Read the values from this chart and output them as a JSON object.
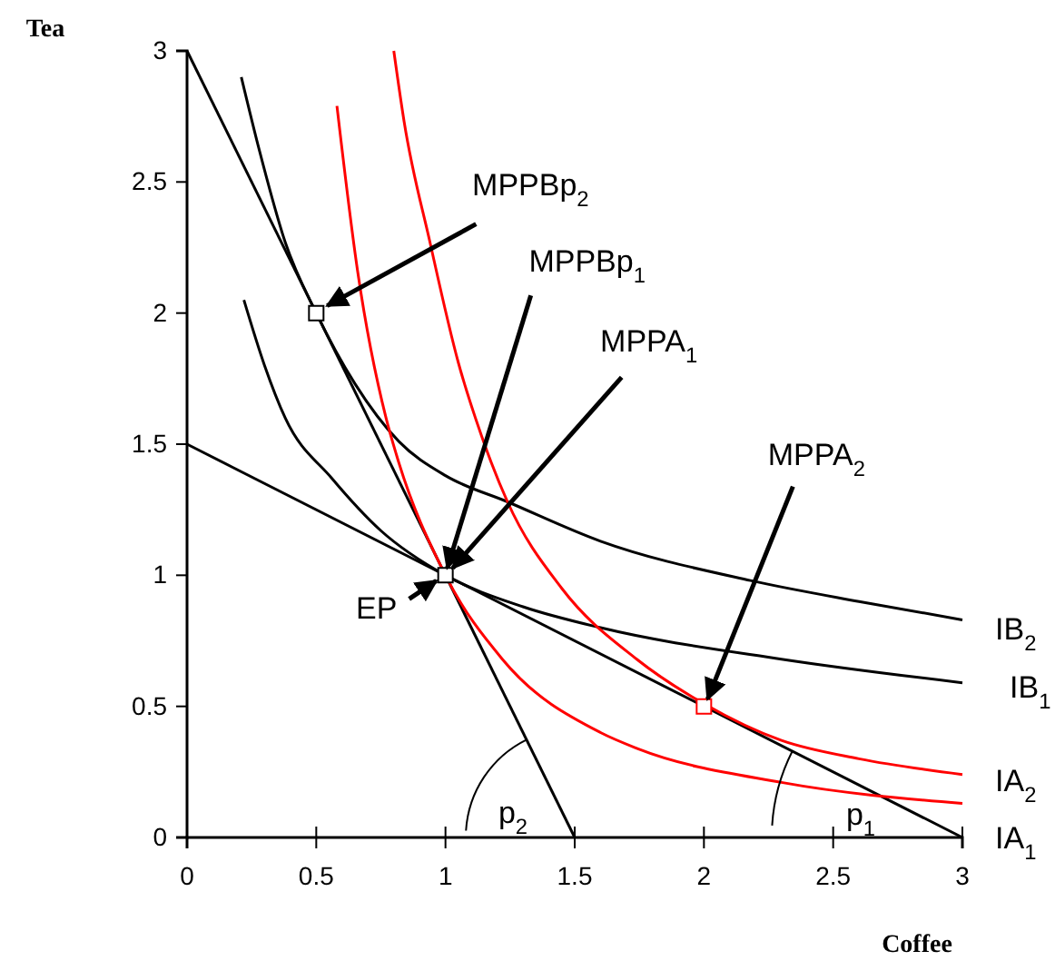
{
  "chart_data": {
    "type": "line",
    "xlabel": "Coffee",
    "ylabel": "Tea",
    "xlim": [
      0,
      3
    ],
    "ylim": [
      0,
      3
    ],
    "xticks": [
      0,
      0.5,
      1,
      1.5,
      2,
      2.5,
      3
    ],
    "yticks": [
      0,
      0.5,
      1,
      1.5,
      2,
      2.5,
      3
    ],
    "grid": false,
    "legend": false,
    "line_style": "solid",
    "series": [
      {
        "color": "#000000",
        "x": [
          0,
          1.5
        ],
        "values": [
          3,
          0
        ]
      },
      {
        "color": "#000000",
        "x": [
          0,
          3
        ],
        "values": [
          1.5,
          0
        ]
      },
      {
        "name": "IB$_{2}$",
        "color": "#000000",
        "x": [
          0.21,
          0.28,
          0.38,
          0.5,
          0.65,
          0.82,
          1.0,
          1.24,
          1.6,
          2.18,
          2.6,
          3
        ],
        "values": [
          2.9,
          2.62,
          2.27,
          2.0,
          1.73,
          1.51,
          1.38,
          1.28,
          1.13,
          0.98,
          0.9,
          0.83
        ]
      },
      {
        "name": "IB$_{1}$",
        "color": "#000000",
        "x": [
          0.22,
          0.3,
          0.38,
          0.56,
          0.75,
          1,
          1.3,
          1.6,
          2.3,
          3
        ],
        "values": [
          2.05,
          1.8,
          1.6,
          1.37,
          1.17,
          1,
          0.88,
          0.8,
          0.68,
          0.59
        ]
      },
      {
        "name": "IA$_{2}$",
        "color": "#ff0000",
        "x": [
          0.8,
          0.84,
          0.94,
          1.05,
          1.14,
          1.24,
          1.45,
          1.74,
          2,
          2.3,
          2.6,
          3
        ],
        "values": [
          3,
          2.73,
          2.27,
          1.81,
          1.53,
          1.28,
          0.95,
          0.68,
          0.51,
          0.37,
          0.3,
          0.24
        ]
      },
      {
        "name": "IA$_{1}$",
        "color": "#ff0000",
        "x": [
          0.58,
          0.66,
          0.77,
          0.81,
          1,
          1.22,
          1.6,
          1.74,
          2.3,
          3
        ],
        "values": [
          2.79,
          2.16,
          1.6,
          1.46,
          1,
          0.68,
          0.4,
          0.34,
          0.21,
          0.13
        ]
      },
      {
        "type": "scatter",
        "marker": "square",
        "color": "#000000",
        "x": [
          0.5,
          1
        ],
        "values": [
          2,
          1
        ]
      },
      {
        "type": "scatter",
        "marker": "square",
        "color": "#ff0000",
        "x": [
          2
        ],
        "values": [
          0.5
        ]
      }
    ],
    "annotations": [
      {
        "text": "MPPBp$_{2}$",
        "x": 0.5,
        "y": 2
      },
      {
        "text": "MPPBp$_{1}$",
        "x": 1,
        "y": 1
      },
      {
        "text": "MPPA$_{1}$",
        "x": 1,
        "y": 1
      },
      {
        "text": "MPPA$_{2}$",
        "x": 2,
        "y": 0.5
      },
      {
        "text": "EP",
        "x": 1,
        "y": 1
      },
      {
        "text": "p$_{2}$",
        "x": 1.5,
        "y": 0
      },
      {
        "text": "p$_{1}$",
        "x": 3,
        "y": 0
      }
    ]
  }
}
